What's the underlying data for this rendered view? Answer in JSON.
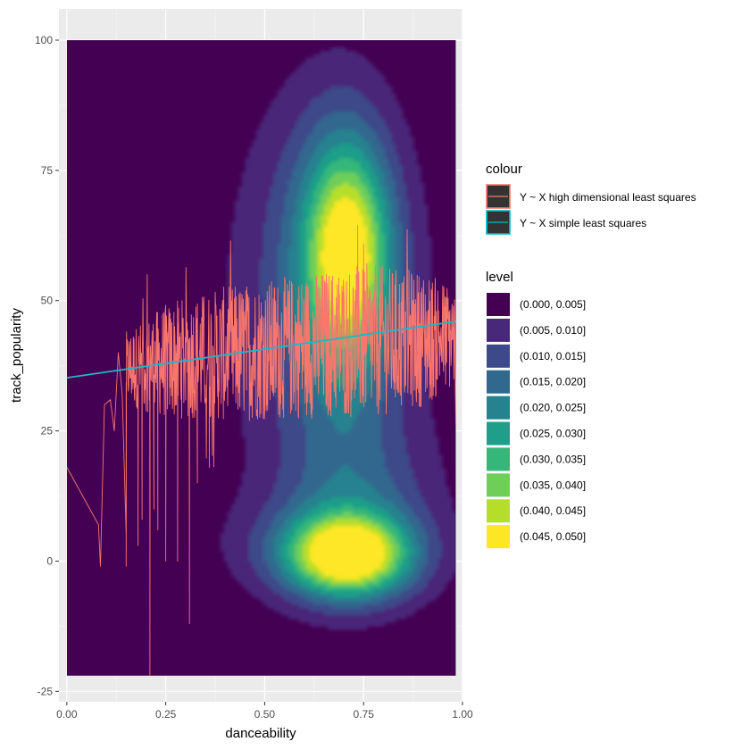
{
  "chart_data": {
    "type": "contour-density",
    "xlabel": "danceability",
    "ylabel": "track_popularity",
    "xlim": [
      -0.02,
      1.0
    ],
    "ylim": [
      -27,
      106
    ],
    "x_ticks": [
      0.0,
      0.25,
      0.5,
      0.75,
      1.0
    ],
    "x_tick_labels": [
      "0.00",
      "0.25",
      "0.50",
      "0.75",
      "1.00"
    ],
    "y_ticks": [
      -25,
      0,
      25,
      50,
      75,
      100
    ],
    "y_tick_labels": [
      "-25",
      "0",
      "25",
      "50",
      "75",
      "100"
    ],
    "grid": true,
    "panel_background": "#ebebeb",
    "density_extent": {
      "x": [
        0.0,
        0.983
      ],
      "y": [
        -22,
        100
      ]
    },
    "density_modes": [
      {
        "x": 0.71,
        "y": 1,
        "peak": 0.045
      },
      {
        "x": 0.71,
        "y": 60,
        "peak": 0.042
      }
    ],
    "level_legend": {
      "title": "level",
      "levels": [
        {
          "label": "(0.000, 0.005]",
          "color": "#440154"
        },
        {
          "label": "(0.005, 0.010]",
          "color": "#482878"
        },
        {
          "label": "(0.010, 0.015]",
          "color": "#3e4989"
        },
        {
          "label": "(0.015, 0.020]",
          "color": "#31688e"
        },
        {
          "label": "(0.020, 0.025]",
          "color": "#26828e"
        },
        {
          "label": "(0.025, 0.030]",
          "color": "#1f9e89"
        },
        {
          "label": "(0.030, 0.035]",
          "color": "#35b779"
        },
        {
          "label": "(0.035, 0.040]",
          "color": "#6ece58"
        },
        {
          "label": "(0.040, 0.045]",
          "color": "#b5de2b"
        },
        {
          "label": "(0.045, 0.050]",
          "color": "#fde725"
        }
      ]
    },
    "colour_legend": {
      "title": "colour",
      "entries": [
        {
          "label": "Y ~ X high dimensional least squares",
          "color": "#f8766d"
        },
        {
          "label": "Y ~ X simple least squares",
          "color": "#00bfc4"
        }
      ]
    },
    "series": [
      {
        "name": "Y ~ X high dimensional least squares",
        "type": "line",
        "color": "#f8766d",
        "band_center": [
          [
            0.15,
            37
          ],
          [
            0.3,
            39
          ],
          [
            0.5,
            40.5
          ],
          [
            0.7,
            42
          ],
          [
            0.85,
            42.5
          ],
          [
            0.98,
            43
          ]
        ],
        "band_halfwidth": [
          [
            0.15,
            7
          ],
          [
            0.25,
            11
          ],
          [
            0.4,
            13
          ],
          [
            0.6,
            14
          ],
          [
            0.75,
            15
          ],
          [
            0.9,
            13
          ],
          [
            0.98,
            10
          ]
        ],
        "sparse_points": [
          [
            0.0,
            18
          ],
          [
            0.08,
            7
          ],
          [
            0.085,
            -1
          ],
          [
            0.095,
            30
          ],
          [
            0.11,
            31
          ],
          [
            0.12,
            25
          ],
          [
            0.13,
            40
          ],
          [
            0.14,
            32
          ],
          [
            0.15,
            5
          ]
        ],
        "spikes_down": [
          [
            0.15,
            -1
          ],
          [
            0.18,
            3
          ],
          [
            0.19,
            8
          ],
          [
            0.21,
            -22
          ],
          [
            0.22,
            10
          ],
          [
            0.23,
            6
          ],
          [
            0.25,
            0
          ],
          [
            0.28,
            0
          ],
          [
            0.31,
            -12
          ],
          [
            0.33,
            15
          ],
          [
            0.36,
            18
          ]
        ],
        "spikes_up": [
          [
            0.17,
            52
          ],
          [
            0.2,
            54
          ],
          [
            0.3,
            55
          ],
          [
            0.5,
            57
          ],
          [
            0.65,
            58
          ],
          [
            0.75,
            59
          ],
          [
            0.88,
            57
          ],
          [
            0.95,
            53
          ]
        ],
        "end_drop": [
          0.983,
          26
        ]
      },
      {
        "name": "Y ~ X simple least squares",
        "type": "line",
        "color": "#22b5c8",
        "x": [
          0.0,
          0.983
        ],
        "y": [
          35.2,
          46.0
        ]
      }
    ]
  }
}
